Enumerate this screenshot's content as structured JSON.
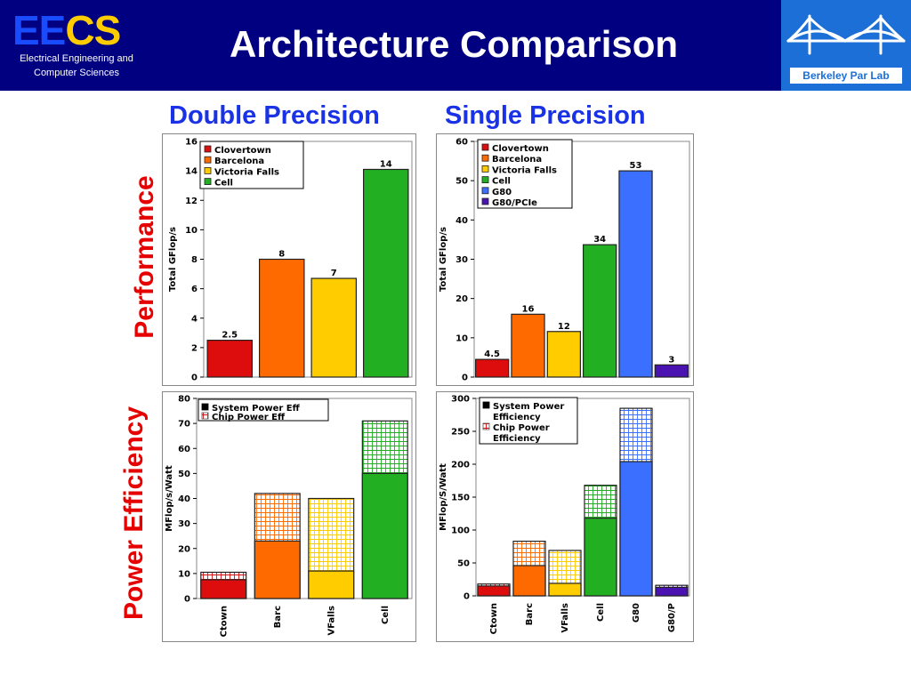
{
  "header": {
    "logo": {
      "ee": "EE",
      "cs": "CS",
      "line1": "Electrical Engineering and",
      "line2": "Computer Sciences"
    },
    "title": "Architecture Comparison",
    "lab": "Berkeley Par Lab",
    "colors": {
      "background": "#000080",
      "lab_background": "#1b6fd6",
      "ee": "#1a4cff",
      "cs": "#ffcc00"
    }
  },
  "column_titles": {
    "double": "Double Precision",
    "single": "Single Precision"
  },
  "row_titles": {
    "performance": "Performance",
    "power": "Power Efficiency"
  },
  "chart_data": [
    {
      "id": "dp-performance",
      "type": "bar",
      "ylabel": "Total GFlop/s",
      "ylim": [
        0,
        16
      ],
      "yticks": [
        0,
        2,
        4,
        6,
        8,
        10,
        12,
        14,
        16
      ],
      "categories": [
        "Clovertown",
        "Barcelona",
        "Victoria Falls",
        "Cell"
      ],
      "values": [
        2.5,
        8,
        6.7,
        14.1
      ],
      "data_labels": [
        "2.5",
        "8",
        "7",
        "14"
      ],
      "colors": [
        "#dd0d0d",
        "#ff6a00",
        "#ffcc00",
        "#22b022"
      ],
      "legend": {
        "position": "top-left",
        "entries": [
          "Clovertown",
          "Barcelona",
          "Victoria Falls",
          "Cell"
        ]
      },
      "grid": false
    },
    {
      "id": "sp-performance",
      "type": "bar",
      "ylabel": "Total GFlop/s",
      "ylim": [
        0,
        60
      ],
      "yticks": [
        0,
        10,
        20,
        30,
        40,
        50,
        60
      ],
      "categories": [
        "Clovertown",
        "Barcelona",
        "Victoria Falls",
        "Cell",
        "G80",
        "G80/PCIe"
      ],
      "values": [
        4.5,
        16,
        11.6,
        33.7,
        52.5,
        3.1
      ],
      "data_labels": [
        "4.5",
        "16",
        "12",
        "34",
        "53",
        "3"
      ],
      "colors": [
        "#dd0d0d",
        "#ff6a00",
        "#ffcc00",
        "#22b022",
        "#3a6fff",
        "#4a12b0"
      ],
      "legend": {
        "position": "top-left",
        "entries": [
          "Clovertown",
          "Barcelona",
          "Victoria Falls",
          "Cell",
          "G80",
          "G80/PCIe"
        ]
      },
      "grid": false
    },
    {
      "id": "dp-power",
      "type": "bar",
      "ylabel": "MFlop/s/Watt",
      "ylim": [
        0,
        80
      ],
      "yticks": [
        0,
        10,
        20,
        30,
        40,
        50,
        60,
        70,
        80
      ],
      "categories": [
        "Ctown",
        "Barc",
        "VFalls",
        "Cell"
      ],
      "series": [
        {
          "name": "System Power Eff",
          "values": [
            7.5,
            23,
            11,
            50
          ]
        },
        {
          "name": "Chip Power Eff",
          "values": [
            10.5,
            42,
            40,
            71
          ]
        }
      ],
      "colors": [
        "#dd0d0d",
        "#ff6a00",
        "#ffcc00",
        "#22b022"
      ],
      "legend": {
        "position": "top-left",
        "entries": [
          "System Power Eff",
          "Chip Power Eff"
        ]
      },
      "grid": false
    },
    {
      "id": "sp-power",
      "type": "bar",
      "ylabel": "MFlop/S/Watt",
      "ylim": [
        0,
        300
      ],
      "yticks": [
        0,
        50,
        100,
        150,
        200,
        250,
        300
      ],
      "categories": [
        "Ctown",
        "Barc",
        "VFalls",
        "Cell",
        "G80",
        "G80/P"
      ],
      "series": [
        {
          "name": "System Power Efficiency",
          "values": [
            15,
            46,
            19,
            118,
            204,
            13
          ]
        },
        {
          "name": "Chip Power Efficiency",
          "values": [
            18,
            83,
            69,
            168,
            285,
            16
          ]
        }
      ],
      "colors": [
        "#dd0d0d",
        "#ff6a00",
        "#ffcc00",
        "#22b022",
        "#3a6fff",
        "#4a12b0"
      ],
      "legend": {
        "position": "top-left",
        "entries": [
          "System Power Efficiency",
          "Chip Power Efficiency"
        ]
      },
      "grid": false
    }
  ]
}
